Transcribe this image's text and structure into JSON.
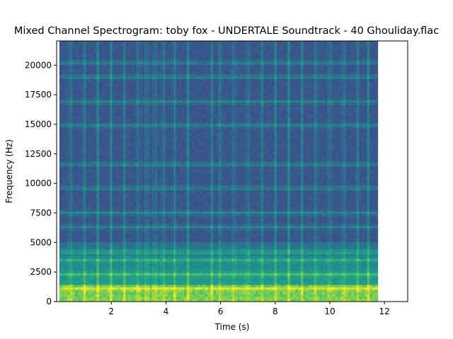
{
  "chart_data": {
    "type": "heatmap",
    "title": "Mixed Channel Spectrogram: toby fox - UNDERTALE Soundtrack - 40 Ghouliday.flac",
    "xlabel": "Time (s)",
    "ylabel": "Frequency (Hz)",
    "xlim": [
      0,
      12.85
    ],
    "ylim": [
      0,
      22050
    ],
    "data_extent_x": [
      0.1,
      11.75
    ],
    "xticks": [
      2,
      4,
      6,
      8,
      10,
      12
    ],
    "xtick_labels": [
      "2",
      "4",
      "6",
      "8",
      "10",
      "12"
    ],
    "yticks": [
      0,
      2500,
      5000,
      7500,
      10000,
      12500,
      15000,
      17500,
      20000
    ],
    "ytick_labels": [
      "0",
      "2500",
      "5000",
      "7500",
      "10000",
      "12500",
      "15000",
      "17500",
      "20000"
    ],
    "colormap": "viridis",
    "grid": false,
    "legend": "none",
    "colors": {
      "background": "#ffffff",
      "low": "#3b5b8c",
      "mid": "#21918c",
      "high": "#fde725"
    }
  }
}
